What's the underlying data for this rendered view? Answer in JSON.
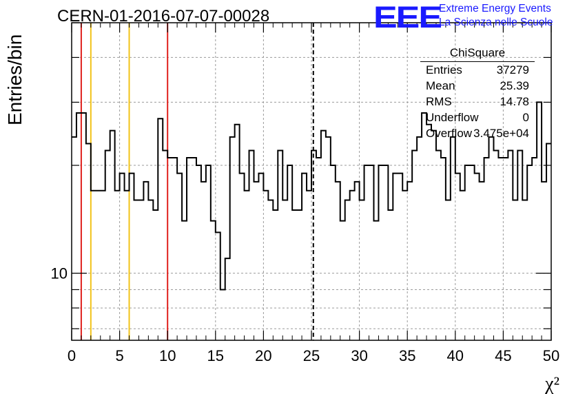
{
  "chart_data": {
    "type": "histogram",
    "title": "CERN-01-2016-07-07-00028",
    "xlabel": "χ²",
    "ylabel": "Entries/bin",
    "xlim": [
      0,
      50
    ],
    "ylim": [
      6.5,
      50
    ],
    "ylog": true,
    "grid": true,
    "bin_width": 0.5,
    "xticks": [
      "0",
      "5",
      "10",
      "15",
      "20",
      "25",
      "30",
      "35",
      "40",
      "45",
      "50"
    ],
    "yticks": [
      {
        "value": 10,
        "label": "10"
      }
    ],
    "values": [
      24,
      28,
      28,
      23,
      17,
      17,
      17,
      22,
      25,
      17,
      19,
      17,
      19,
      16,
      16,
      18,
      16,
      15,
      27,
      22,
      21,
      21,
      19,
      14,
      21,
      21,
      20,
      18,
      20,
      14,
      13,
      9,
      11,
      24,
      26,
      19,
      17,
      22,
      18,
      19,
      17,
      16,
      15,
      22,
      16,
      20,
      15,
      15,
      19,
      17,
      22,
      21,
      25,
      24,
      20,
      18,
      14,
      16,
      17,
      18,
      16,
      20,
      20,
      14,
      20,
      20,
      15,
      19,
      19,
      17,
      18,
      22,
      24,
      28,
      26,
      25,
      22,
      21,
      16,
      24,
      19,
      17,
      20,
      20,
      19,
      18,
      21,
      24,
      22,
      21,
      21,
      22,
      16,
      22,
      16,
      20,
      21,
      30,
      18,
      23
    ],
    "vlines": [
      {
        "x": 1.0,
        "color": "#e0201c",
        "style": "solid"
      },
      {
        "x": 2.0,
        "color": "#f2c318",
        "style": "solid"
      },
      {
        "x": 6.0,
        "color": "#f2c318",
        "style": "solid"
      },
      {
        "x": 10.0,
        "color": "#e0201c",
        "style": "solid"
      },
      {
        "x": 25.2,
        "color": "#000000",
        "style": "dashed"
      }
    ],
    "legend": "top-right"
  },
  "logo": {
    "text": "EEE",
    "line1": "Extreme Energy Events",
    "line2": "La Scienza nelle Scuole",
    "color": "#1a1aff"
  },
  "stats": {
    "title": "ChiSquare",
    "rows": [
      {
        "key": "Entries",
        "value": "37279"
      },
      {
        "key": "Mean",
        "value": "25.39"
      },
      {
        "key": "RMS",
        "value": "14.78"
      },
      {
        "key": "Underflow",
        "value": "0"
      },
      {
        "key": "Overflow",
        "value": "3.475e+04"
      }
    ]
  }
}
